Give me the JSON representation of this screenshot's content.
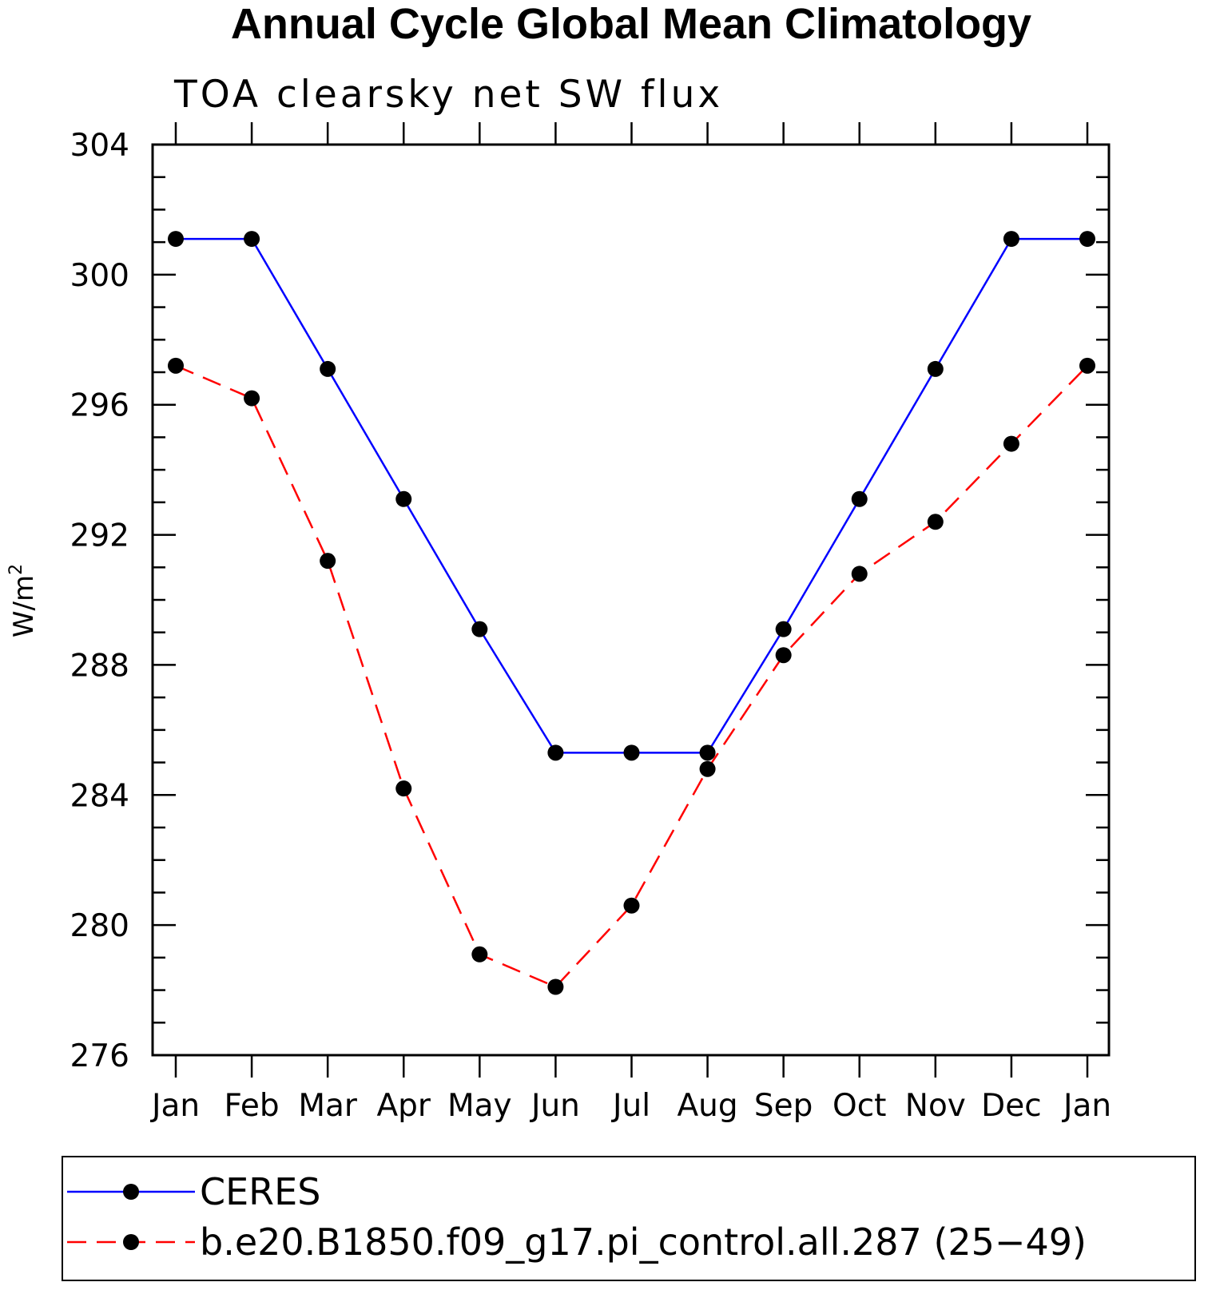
{
  "chart_data": {
    "type": "line",
    "title": "Annual Cycle Global Mean Climatology",
    "subtitle": "TOA clearsky net SW flux",
    "ylabel_base": "W/m",
    "ylabel_sup": "2",
    "ylim": [
      276,
      304
    ],
    "yticks": [
      "276",
      "280",
      "284",
      "288",
      "292",
      "296",
      "300",
      "304"
    ],
    "categories": [
      "Jan",
      "Feb",
      "Mar",
      "Apr",
      "May",
      "Jun",
      "Jul",
      "Aug",
      "Sep",
      "Oct",
      "Nov",
      "Dec",
      "Jan"
    ],
    "series": [
      {
        "name": "CERES",
        "color": "#0000ff",
        "line_style": "solid",
        "values": [
          301.1,
          301.1,
          297.1,
          293.1,
          289.1,
          285.3,
          285.3,
          285.3,
          289.1,
          293.1,
          297.1,
          301.1,
          301.1
        ]
      },
      {
        "name": "b.e20.B1850.f09_g17.pi_control.all.287 (25−49)",
        "color": "#ff0000",
        "line_style": "dashed",
        "values": [
          297.2,
          296.2,
          291.2,
          284.2,
          279.1,
          278.1,
          280.6,
          284.8,
          288.3,
          290.8,
          292.4,
          294.8,
          297.2
        ]
      }
    ],
    "marker": "filled-circle",
    "grid": false,
    "legend_position": "bottom"
  }
}
